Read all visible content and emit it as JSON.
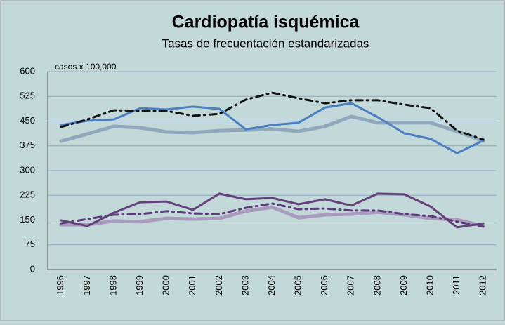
{
  "chart_data": {
    "type": "line",
    "title": "Cardiopatía isquémica",
    "subtitle": "Tasas de frecuentación estandarizadas",
    "annotation": "casos x 100,000",
    "categories": [
      "1996",
      "1997",
      "1998",
      "1999",
      "2000",
      "2001",
      "2002",
      "2003",
      "2004",
      "2005",
      "2006",
      "2007",
      "2008",
      "2009",
      "2010",
      "2011",
      "2012"
    ],
    "series": [
      {
        "color": "#8fa9bb",
        "style": "solid",
        "width": 5,
        "values": [
          389,
          411,
          434,
          430,
          417,
          415,
          421,
          423,
          426,
          419,
          434,
          464,
          445,
          445,
          445,
          419,
          389
        ]
      },
      {
        "color": "#4a7fc1",
        "style": "solid",
        "width": 3,
        "values": [
          438,
          451,
          455,
          489,
          485,
          494,
          487,
          425,
          438,
          445,
          491,
          504,
          462,
          413,
          396,
          353,
          391
        ]
      },
      {
        "color": "#111111",
        "style": "dashdot",
        "width": 3,
        "values": [
          432,
          455,
          483,
          481,
          481,
          466,
          472,
          515,
          536,
          519,
          504,
          513,
          513,
          500,
          489,
          421,
          394
        ]
      },
      {
        "color": "#a99bbd",
        "style": "solid",
        "width": 5,
        "values": [
          136,
          136,
          147,
          145,
          155,
          153,
          155,
          177,
          189,
          157,
          166,
          168,
          174,
          166,
          155,
          151,
          132
        ]
      },
      {
        "color": "#5a3c78",
        "style": "dashdot",
        "width": 3,
        "values": [
          140,
          153,
          166,
          168,
          177,
          170,
          168,
          187,
          200,
          183,
          185,
          179,
          179,
          168,
          162,
          145,
          130
        ]
      },
      {
        "color": "#64407a",
        "style": "solid",
        "width": 3,
        "values": [
          149,
          132,
          172,
          204,
          206,
          181,
          230,
          213,
          217,
          198,
          213,
          194,
          230,
          228,
          191,
          128,
          140
        ]
      }
    ],
    "ylim": [
      0,
      600
    ],
    "yticks": [
      0,
      75,
      150,
      225,
      300,
      375,
      450,
      525,
      600
    ],
    "grid": true
  }
}
